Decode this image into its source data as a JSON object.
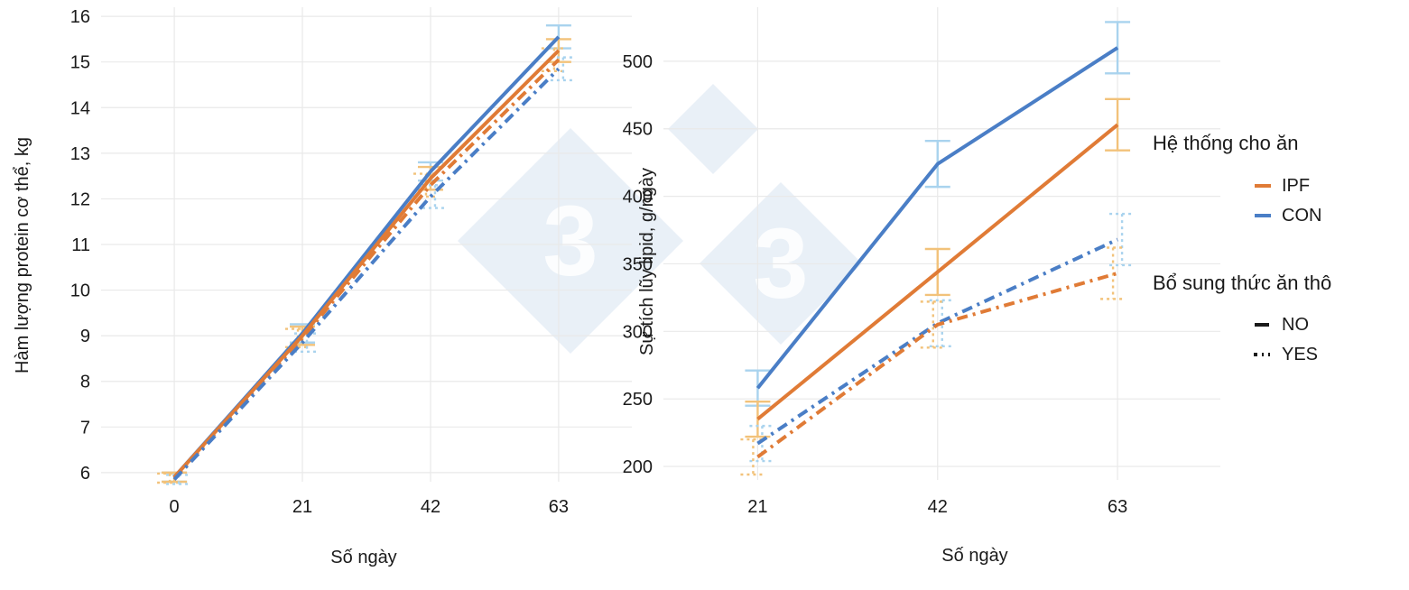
{
  "colors": {
    "IPF": "#e07b36",
    "CON": "#4a7ec6",
    "IPF_error": "#f2c27a",
    "CON_error": "#a9d3ee",
    "grid": "#e9e9e9",
    "watermark": "#dfe9f3"
  },
  "watermark": {
    "glyph": "3"
  },
  "chart_data": [
    {
      "type": "line",
      "title": "",
      "xlabel": "Số ngày",
      "ylabel": "Hàm lượng protein cơ thể, kg",
      "x": [
        0,
        21,
        42,
        63
      ],
      "xlim": [
        -12,
        75
      ],
      "ylim": [
        5.8,
        16.2
      ],
      "yticks": [
        6,
        7,
        8,
        9,
        10,
        11,
        12,
        13,
        14,
        15,
        16
      ],
      "grid": true,
      "series": [
        {
          "name": "CON-NO",
          "feeding": "CON",
          "roughage": "NO",
          "values": [
            5.9,
            9.05,
            12.6,
            15.55
          ],
          "errors": [
            0.1,
            0.2,
            0.2,
            0.25
          ]
        },
        {
          "name": "IPF-NO",
          "feeding": "IPF",
          "roughage": "NO",
          "values": [
            5.9,
            9.0,
            12.45,
            15.25
          ],
          "errors": [
            0.1,
            0.2,
            0.25,
            0.25
          ]
        },
        {
          "name": "IPF-YES",
          "feeding": "IPF",
          "roughage": "YES",
          "values": [
            5.88,
            8.95,
            12.3,
            15.05
          ],
          "errors": [
            0.1,
            0.2,
            0.25,
            0.25
          ]
        },
        {
          "name": "CON-YES",
          "feeding": "CON",
          "roughage": "YES",
          "values": [
            5.85,
            8.85,
            12.05,
            14.85
          ],
          "errors": [
            0.1,
            0.2,
            0.25,
            0.25
          ]
        }
      ]
    },
    {
      "type": "line",
      "title": "",
      "xlabel": "Số ngày",
      "ylabel": "Sự tích lũy lipid, g/ngày",
      "x": [
        21,
        42,
        63
      ],
      "xlim": [
        10,
        75
      ],
      "ylim": [
        190,
        540
      ],
      "yticks": [
        200,
        250,
        300,
        350,
        400,
        450,
        500
      ],
      "grid": true,
      "series": [
        {
          "name": "CON-NO",
          "feeding": "CON",
          "roughage": "NO",
          "values": [
            258,
            424,
            510
          ],
          "errors": [
            13,
            17,
            19
          ]
        },
        {
          "name": "IPF-NO",
          "feeding": "IPF",
          "roughage": "NO",
          "values": [
            235,
            344,
            453
          ],
          "errors": [
            13,
            17,
            19
          ]
        },
        {
          "name": "CON-YES",
          "feeding": "CON",
          "roughage": "YES",
          "values": [
            217,
            306,
            368
          ],
          "errors": [
            13,
            17,
            19
          ]
        },
        {
          "name": "IPF-YES",
          "feeding": "IPF",
          "roughage": "YES",
          "values": [
            207,
            305,
            343
          ],
          "errors": [
            13,
            17,
            19
          ]
        }
      ]
    }
  ],
  "legend": {
    "placement": "right",
    "feeding": {
      "title": "Hệ thống cho ăn",
      "items": [
        {
          "label": "IPF",
          "key": "IPF"
        },
        {
          "label": "CON",
          "key": "CON"
        }
      ]
    },
    "roughage": {
      "title": "Bổ sung thức ăn thô",
      "items": [
        {
          "label": "NO",
          "key": "NO"
        },
        {
          "label": "YES",
          "key": "YES"
        }
      ]
    }
  }
}
